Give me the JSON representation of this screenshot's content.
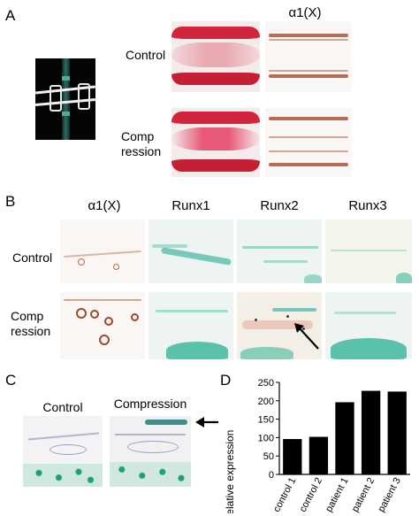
{
  "panel_labels": {
    "a": "A",
    "b": "B",
    "c": "C",
    "d": "D"
  },
  "panel_a": {
    "column_header": "α1(X)",
    "row_labels": {
      "control": "Control",
      "compression_1": "Comp",
      "compression_2": "ression"
    }
  },
  "panel_b": {
    "column_headers": [
      "α1(X)",
      "Runx1",
      "Runx2",
      "Runx3"
    ],
    "row_labels": {
      "control": "Control",
      "compression_1": "Comp",
      "compression_2": "ression"
    }
  },
  "panel_c": {
    "column_headers": {
      "control": "Control",
      "compression": "Compression"
    }
  },
  "chart_data": {
    "type": "bar",
    "title": "",
    "xlabel": "",
    "ylabel": "Relative expression",
    "categories": [
      "control 1",
      "control 2",
      "patient 1",
      "patient 2",
      "patient 3"
    ],
    "values": [
      96,
      102,
      196,
      227,
      225
    ],
    "ylim": [
      0,
      250
    ],
    "yticks": [
      0,
      50,
      100,
      150,
      200,
      250
    ],
    "bar_color": "#000000",
    "grid": false
  },
  "colors": {
    "safranin": "#d2243a",
    "ihc_brown": "#a9553b",
    "teal": "#3fb79f"
  }
}
